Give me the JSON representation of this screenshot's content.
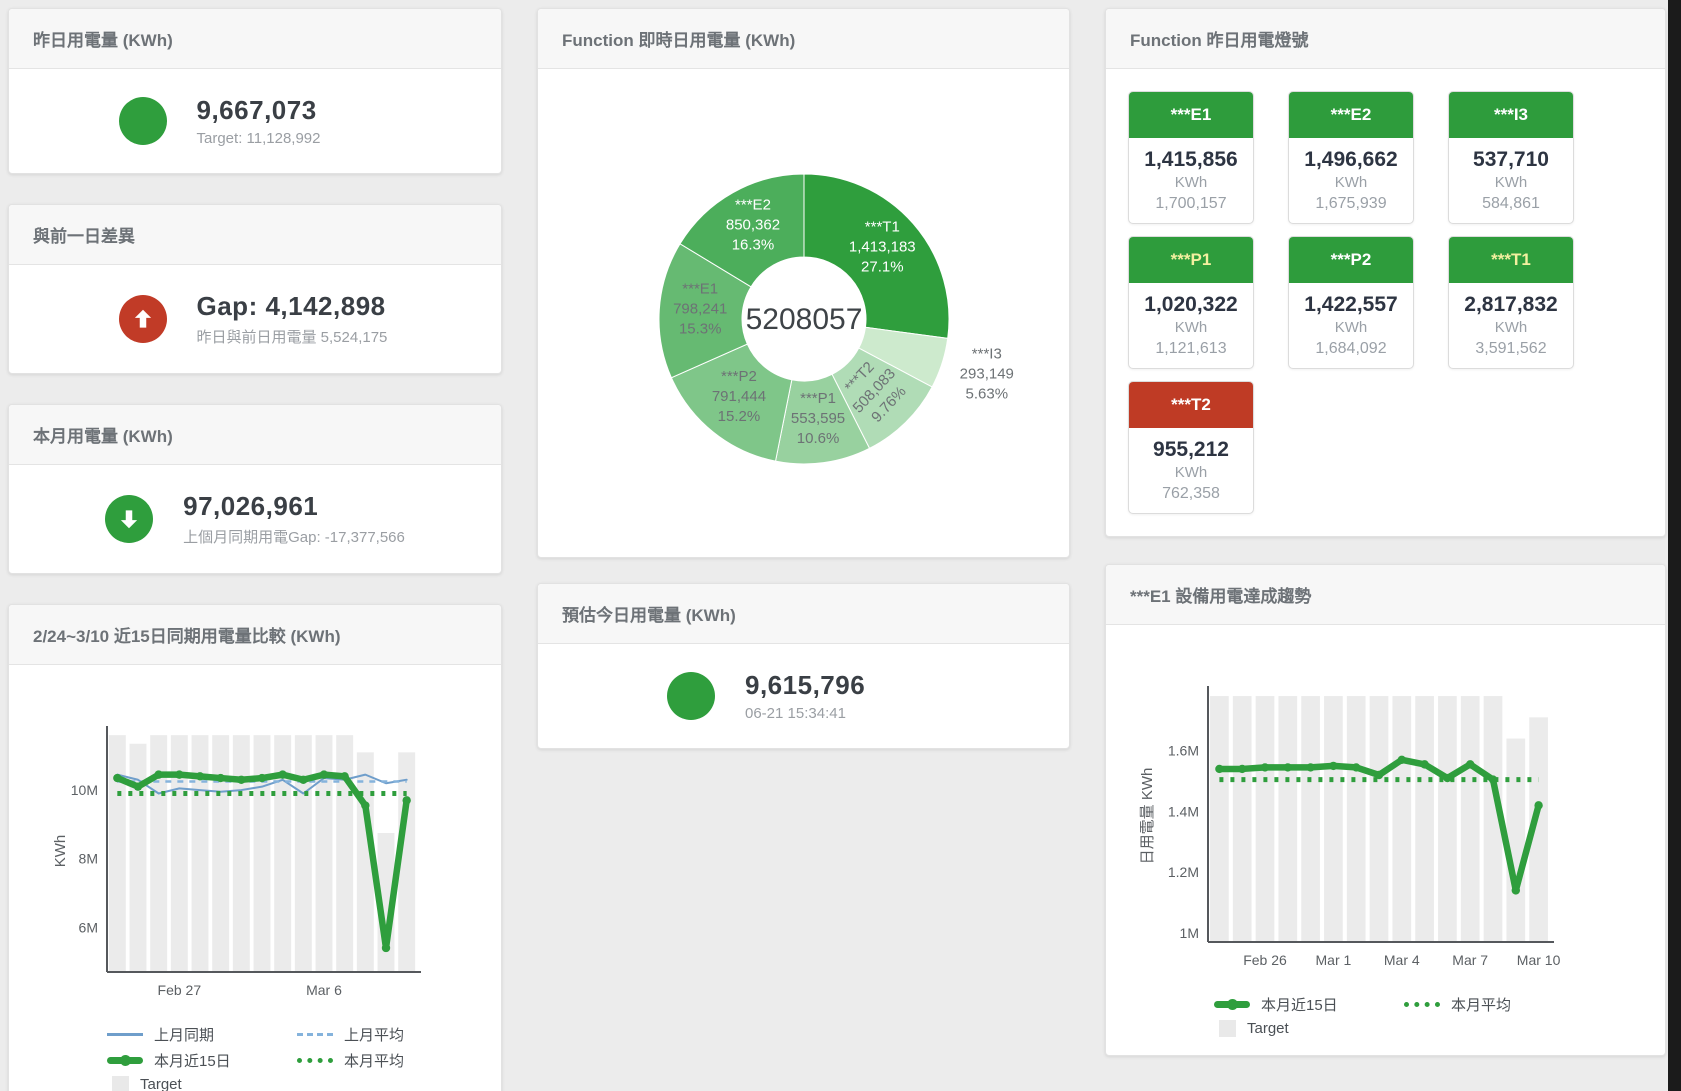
{
  "page": {
    "background": "#ececec",
    "accent_green": "#2f9e3d",
    "accent_red": "#c13b27"
  },
  "cards": {
    "yesterday": {
      "title": "昨日用電量 (KWh)",
      "value": "9,667,073",
      "subtitle": "Target: 11,128,992",
      "indicator": "circle",
      "color": "#2f9e3d"
    },
    "gap": {
      "title": "與前一日差異",
      "value": "Gap: 4,142,898",
      "subtitle": "昨日與前日用電量 5,524,175",
      "indicator": "arrow-up",
      "color": "#c13b27"
    },
    "month": {
      "title": "本月用電量 (KWh)",
      "value": "97,026,961",
      "subtitle": "上個月同期用電Gap: -17,377,566",
      "indicator": "arrow-down",
      "color": "#2f9e3d"
    },
    "estimate": {
      "title": "預估今日用電量 (KWh)",
      "value": "9,615,796",
      "subtitle": "06-21 15:34:41",
      "indicator": "circle",
      "color": "#2f9e3d"
    }
  },
  "lights": {
    "title": "Function 昨日用電燈號",
    "unit": "KWh",
    "tiles": [
      {
        "name": "***E1",
        "value": "1,415,856",
        "target": "1,700,157",
        "header_bg": "#2e9c3c",
        "header_fg": "#ffffff"
      },
      {
        "name": "***E2",
        "value": "1,496,662",
        "target": "1,675,939",
        "header_bg": "#2e9c3c",
        "header_fg": "#ffffff"
      },
      {
        "name": "***I3",
        "value": "537,710",
        "target": "584,861",
        "header_bg": "#2e9c3c",
        "header_fg": "#ffffff"
      },
      {
        "name": "***P1",
        "value": "1,020,322",
        "target": "1,121,613",
        "header_bg": "#2e9c3c",
        "header_fg": "#f3f0a0"
      },
      {
        "name": "***P2",
        "value": "1,422,557",
        "target": "1,684,092",
        "header_bg": "#2e9c3c",
        "header_fg": "#ffffff"
      },
      {
        "name": "***T1",
        "value": "2,817,832",
        "target": "3,591,562",
        "header_bg": "#2e9c3c",
        "header_fg": "#f3f0a0"
      },
      {
        "name": "***T2",
        "value": "955,212",
        "target": "762,358",
        "header_bg": "#bf3b25",
        "header_fg": "#ffffff"
      }
    ]
  },
  "chart_data": [
    {
      "type": "pie",
      "subtype": "donut",
      "title": "Function 即時日用電量 (KWh)",
      "center_total": "5208057",
      "slices": [
        {
          "name": "***T1",
          "value": 1413183,
          "value_label": "1,413,183",
          "pct": 27.1,
          "pct_label": "27.1%",
          "color": "#2f9e3d",
          "label_color": "#ffffff"
        },
        {
          "name": "***I3",
          "value": 293149,
          "value_label": "293,149",
          "pct": 5.63,
          "pct_label": "5.63%",
          "color": "#cdeacd",
          "label_color": "#6d7275",
          "outside": true
        },
        {
          "name": "***T2",
          "value": 508083,
          "value_label": "508,083",
          "pct": 9.76,
          "pct_label": "9.76%",
          "color": "#b0dcb6",
          "label_color": "#6d7275",
          "rotate": -47
        },
        {
          "name": "***P1",
          "value": 553595,
          "value_label": "553,595",
          "pct": 10.6,
          "pct_label": "10.6%",
          "color": "#98d19f",
          "label_color": "#6d7275"
        },
        {
          "name": "***P2",
          "value": 791444,
          "value_label": "791,444",
          "pct": 15.2,
          "pct_label": "15.2%",
          "color": "#7fc689",
          "label_color": "#6d7275"
        },
        {
          "name": "***E1",
          "value": 798241,
          "value_label": "798,241",
          "pct": 15.3,
          "pct_label": "15.3%",
          "color": "#66ba72",
          "label_color": "#6d7275"
        },
        {
          "name": "***E2",
          "value": 850362,
          "value_label": "850,362",
          "pct": 16.3,
          "pct_label": "16.3%",
          "color": "#4cae5b",
          "label_color": "#ffffff"
        }
      ]
    },
    {
      "type": "line",
      "title": "2/24~3/10 近15日同期用電量比較 (KWh)",
      "ylabel": "KWh",
      "ylim": [
        4.7,
        11.75
      ],
      "n": 15,
      "yticks": [
        {
          "v": 6,
          "label": "6M"
        },
        {
          "v": 8,
          "label": "8M"
        },
        {
          "v": 10,
          "label": "10M"
        }
      ],
      "xticks": [
        {
          "i": 3,
          "label": "Feb 27"
        },
        {
          "i": 10,
          "label": "Mar 6"
        }
      ],
      "bars": {
        "name": "Target",
        "color": "#ebebeb",
        "values": [
          11.6,
          11.35,
          11.6,
          11.6,
          11.6,
          11.6,
          11.6,
          11.6,
          11.6,
          11.6,
          11.6,
          11.6,
          11.1,
          8.75,
          11.1
        ]
      },
      "series": [
        {
          "name": "上月同期",
          "color": "#6f9ecb",
          "width": 2,
          "values": [
            10.45,
            10.3,
            9.9,
            10.05,
            10.0,
            9.95,
            10.0,
            10.1,
            10.3,
            9.9,
            10.35,
            10.3,
            10.45,
            10.2,
            10.3
          ]
        },
        {
          "name": "上月平均",
          "color": "#85b3dc",
          "width": 2.5,
          "dash": "6 6",
          "values": 10.25
        },
        {
          "name": "本月平均",
          "color": "#2f9e3d",
          "width": 5,
          "dash": "4 7",
          "values": 9.9
        },
        {
          "name": "本月近15日",
          "color": "#2f9e3d",
          "width": 6.5,
          "markers": true,
          "values": [
            10.35,
            10.1,
            10.45,
            10.45,
            10.4,
            10.35,
            10.3,
            10.35,
            10.45,
            10.3,
            10.45,
            10.4,
            9.55,
            5.4,
            9.7
          ]
        }
      ],
      "legend": [
        {
          "label": "上月同期",
          "swatch": "line",
          "color": "#6f9ecb"
        },
        {
          "label": "上月平均",
          "swatch": "dash",
          "color": "#85b3dc"
        },
        {
          "label": "本月近15日",
          "swatch": "thick",
          "color": "#2f9e3d"
        },
        {
          "label": "本月平均",
          "swatch": "dot",
          "color": "#2f9e3d"
        },
        {
          "label": "Target",
          "swatch": "box",
          "color": "#e9e9e9"
        }
      ]
    },
    {
      "type": "line",
      "title": "***E1 設備用電達成趨勢",
      "ylabel": "日用電量 KWh",
      "ylim": [
        0.97,
        1.8
      ],
      "n": 15,
      "yticks": [
        {
          "v": 1,
          "label": "1M"
        },
        {
          "v": 1.2,
          "label": "1.2M"
        },
        {
          "v": 1.4,
          "label": "1.4M"
        },
        {
          "v": 1.6,
          "label": "1.6M"
        }
      ],
      "xticks": [
        {
          "i": 2,
          "label": "Feb 26"
        },
        {
          "i": 5,
          "label": "Mar 1"
        },
        {
          "i": 8,
          "label": "Mar 4"
        },
        {
          "i": 11,
          "label": "Mar 7"
        },
        {
          "i": 14,
          "label": "Mar 10"
        }
      ],
      "bars": {
        "name": "Target",
        "color": "#ebebeb",
        "values": [
          1.78,
          1.78,
          1.78,
          1.78,
          1.78,
          1.78,
          1.78,
          1.78,
          1.78,
          1.78,
          1.78,
          1.78,
          1.78,
          1.64,
          1.71
        ]
      },
      "series": [
        {
          "name": "本月平均",
          "color": "#2f9e3d",
          "width": 5,
          "dash": "4 7",
          "values": 1.505
        },
        {
          "name": "本月近15日",
          "color": "#2f9e3d",
          "width": 6.5,
          "markers": true,
          "values": [
            1.54,
            1.54,
            1.545,
            1.545,
            1.545,
            1.55,
            1.545,
            1.52,
            1.57,
            1.555,
            1.51,
            1.555,
            1.505,
            1.14,
            1.42
          ]
        }
      ],
      "legend": [
        {
          "label": "本月近15日",
          "swatch": "thick",
          "color": "#2f9e3d"
        },
        {
          "label": "本月平均",
          "swatch": "dot",
          "color": "#2f9e3d"
        },
        {
          "label": "Target",
          "swatch": "box",
          "color": "#e9e9e9"
        }
      ]
    }
  ]
}
